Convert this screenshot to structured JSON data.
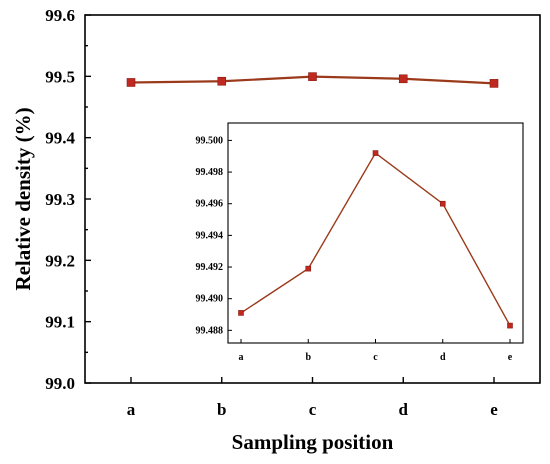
{
  "colors": {
    "line": "#9b3a1a",
    "marker": "#c0291f",
    "background": "#ffffff",
    "axis": "#000000"
  },
  "chart_data": [
    {
      "id": "main",
      "type": "line",
      "categories": [
        "a",
        "b",
        "c",
        "d",
        "e"
      ],
      "values": [
        99.49,
        99.492,
        99.4995,
        99.496,
        99.4885
      ],
      "xlabel": "Sampling position",
      "ylabel": "Relative density (%)",
      "ylim": [
        99.0,
        99.6
      ],
      "yticks": [
        "99.0",
        "99.1",
        "99.2",
        "99.3",
        "99.4",
        "99.5",
        "99.6"
      ],
      "grid": false,
      "legend": "none",
      "marker": "square"
    },
    {
      "id": "inset",
      "type": "line",
      "categories": [
        "a",
        "b",
        "c",
        "d",
        "e"
      ],
      "values": [
        99.4891,
        99.4919,
        99.4992,
        99.496,
        99.4883
      ],
      "ylim": [
        99.4872,
        99.5011
      ],
      "yticks": [
        "99.488",
        "99.490",
        "99.492",
        "99.494",
        "99.496",
        "99.498",
        "99.500"
      ],
      "grid": false,
      "legend": "none",
      "marker": "square"
    }
  ]
}
